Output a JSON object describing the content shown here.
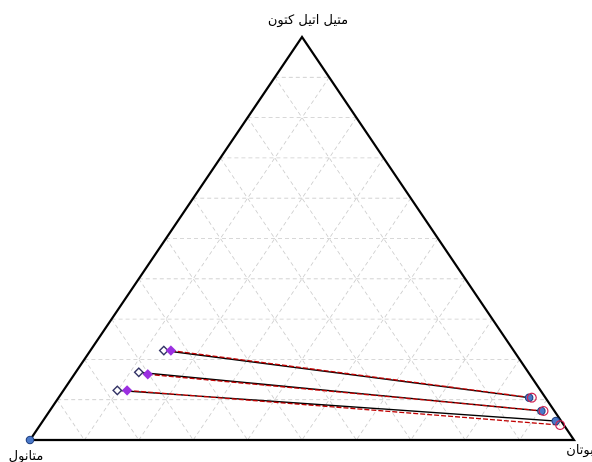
{
  "chart_data": {
    "type": "ternary",
    "title": "",
    "vertices": {
      "top": "متیل اتیل کتون",
      "left": "متانول",
      "right": "بوتان"
    },
    "grid": true,
    "grid_step": 0.1,
    "note": "fractions are (top, left, right) mole fractions; each tie-line joins an MeOH-rich phase to a butane-rich phase",
    "tie_lines": [
      {
        "experimental": {
          "left_phase": [
            0.222,
            0.643,
            0.135
          ],
          "right_phase": [
            0.105,
            0.03,
            0.865
          ]
        },
        "calculated": {
          "left_phase": [
            0.222,
            0.63,
            0.148
          ],
          "right_phase": [
            0.105,
            0.025,
            0.87
          ]
        }
      },
      {
        "experimental": {
          "left_phase": [
            0.168,
            0.716,
            0.116
          ],
          "right_phase": [
            0.072,
            0.024,
            0.904
          ]
        },
        "calculated": {
          "left_phase": [
            0.163,
            0.702,
            0.135
          ],
          "right_phase": [
            0.072,
            0.02,
            0.908
          ]
        }
      },
      {
        "experimental": {
          "left_phase": [
            0.123,
            0.778,
            0.099
          ],
          "right_phase": [
            0.047,
            0.01,
            0.943
          ]
        },
        "calculated": {
          "left_phase": [
            0.123,
            0.76,
            0.117
          ],
          "right_phase": [
            0.037,
            0.007,
            0.956
          ]
        }
      }
    ],
    "pure_points": [
      {
        "vertex": "left",
        "fractions": [
          0,
          1,
          0
        ]
      }
    ],
    "colors": {
      "frame": "#000000",
      "grid": "#cccccc",
      "experimental_line": "#000000",
      "calculated_line": "#c00000",
      "left_calc_marker": "#9b30e0",
      "left_exp_marker": "#333366",
      "right_marker_fill": "#4a78c8",
      "right_marker_ring": "#d02050"
    }
  }
}
